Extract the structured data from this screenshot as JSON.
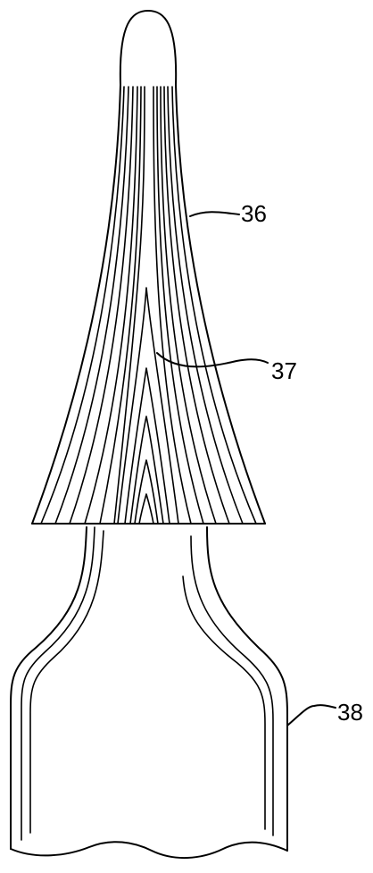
{
  "figure": {
    "labels": {
      "tip": "36",
      "striations": "37",
      "base": "38"
    }
  }
}
